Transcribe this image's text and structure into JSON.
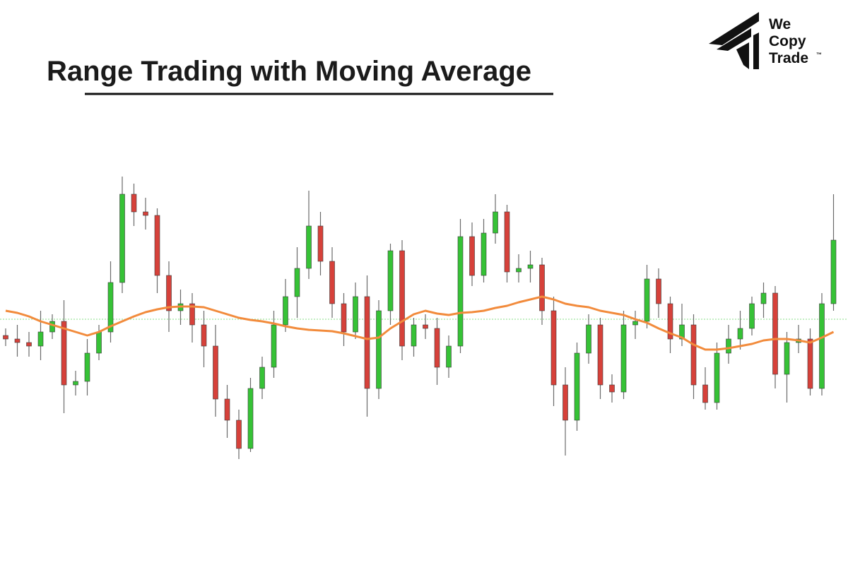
{
  "chart_data": {
    "type": "candlestick",
    "title": "Range Trading with Moving Average",
    "ylim": [
      0,
      100
    ],
    "candles": {
      "up_color": "#36c236",
      "down_color": "#d6413a",
      "open": [
        45,
        44,
        43,
        42,
        46,
        49,
        31,
        32,
        40,
        46,
        60,
        85,
        80,
        79,
        62,
        52,
        54,
        48,
        42,
        27,
        21,
        13,
        30,
        36,
        48,
        56,
        64,
        76,
        66,
        54,
        46,
        56,
        30,
        52,
        69,
        42,
        48,
        47,
        36,
        42,
        73,
        62,
        74,
        80,
        63,
        64,
        65,
        52,
        31,
        21,
        40,
        48,
        31,
        29,
        48,
        49,
        61,
        54,
        44,
        48,
        31,
        26,
        40,
        44,
        47,
        54,
        57,
        34,
        43,
        44,
        30,
        54
      ],
      "high": [
        47,
        48,
        46,
        52,
        51,
        55,
        35,
        44,
        48,
        66,
        90,
        88,
        84,
        81,
        66,
        58,
        57,
        52,
        48,
        31,
        24,
        33,
        39,
        52,
        61,
        70,
        86,
        80,
        70,
        57,
        60,
        62,
        55,
        71,
        72,
        50,
        51,
        50,
        45,
        78,
        77,
        78,
        85,
        82,
        68,
        69,
        67,
        56,
        36,
        43,
        51,
        50,
        34,
        52,
        52,
        65,
        64,
        56,
        54,
        51,
        36,
        43,
        48,
        52,
        56,
        60,
        59,
        46,
        48,
        47,
        57,
        85
      ],
      "low": [
        42,
        39,
        39,
        38,
        44,
        23,
        28,
        28,
        38,
        43,
        57,
        76,
        75,
        57,
        46,
        48,
        43,
        36,
        22,
        16,
        10,
        12,
        27,
        33,
        46,
        50,
        61,
        62,
        50,
        42,
        44,
        22,
        27,
        48,
        38,
        39,
        44,
        31,
        33,
        40,
        59,
        60,
        71,
        60,
        60,
        60,
        48,
        25,
        11,
        18,
        37,
        27,
        26,
        27,
        44,
        47,
        50,
        40,
        42,
        27,
        24,
        24,
        37,
        41,
        45,
        50,
        30,
        26,
        40,
        28,
        28,
        52
      ],
      "close": [
        44,
        43,
        42,
        46,
        49,
        31,
        32,
        40,
        46,
        60,
        85,
        80,
        79,
        62,
        52,
        54,
        48,
        42,
        27,
        21,
        13,
        30,
        36,
        48,
        56,
        64,
        76,
        66,
        54,
        46,
        56,
        30,
        52,
        69,
        42,
        48,
        47,
        36,
        42,
        73,
        62,
        74,
        80,
        63,
        64,
        65,
        52,
        31,
        21,
        40,
        48,
        31,
        29,
        48,
        49,
        61,
        54,
        44,
        48,
        31,
        26,
        40,
        44,
        47,
        54,
        57,
        34,
        43,
        44,
        30,
        54,
        72
      ]
    },
    "moving_average": {
      "color": "#f28b3c",
      "values": [
        52,
        51.4,
        50.4,
        49,
        48,
        47,
        46,
        45,
        46,
        47.6,
        49,
        50.4,
        51.6,
        52.4,
        53,
        53.2,
        53.2,
        53,
        52,
        51,
        50,
        49.4,
        49,
        48.4,
        47.6,
        47,
        46.6,
        46.4,
        46.2,
        45.6,
        44.8,
        44,
        44.4,
        47,
        49,
        51,
        52,
        51.2,
        50.8,
        51.4,
        51.6,
        52,
        52.8,
        53.4,
        54.4,
        55.2,
        56,
        55.2,
        54,
        53.4,
        53,
        52,
        51.4,
        50.8,
        49.6,
        48.6,
        47,
        45.6,
        44.4,
        42.4,
        41,
        41,
        41.4,
        42,
        42.6,
        43.6,
        44,
        44,
        43.6,
        43,
        44.4,
        46
      ]
    },
    "reference_line": {
      "value": 49.6,
      "color": "#9fe59f"
    }
  },
  "logo": {
    "lines": [
      "We",
      "Copy",
      "Trade"
    ],
    "mark": "™"
  }
}
